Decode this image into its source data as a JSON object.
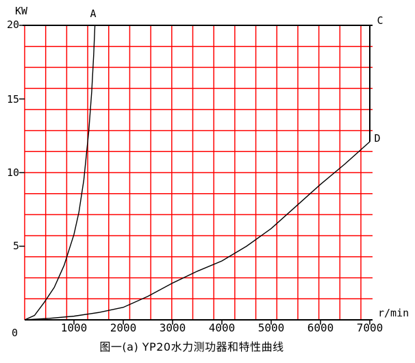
{
  "figure": {
    "unit_y": "KW",
    "unit_x": "r/min",
    "origin_label": "0",
    "y_ticks": [
      "20",
      "15",
      "10",
      "5"
    ],
    "x_ticks": [
      "1000",
      "2000",
      "3000",
      "4000",
      "5000",
      "6000",
      "7000"
    ],
    "point_labels": {
      "A": "A",
      "C": "C",
      "D": "D"
    },
    "caption": "图一(a) YP20水力测功器和特性曲线",
    "colors": {
      "grid": "#ff0000",
      "ink": "#000000",
      "background": "#ffffff"
    }
  },
  "chart_data": {
    "type": "line",
    "title": "图一(a) YP20水力测功器和特性曲线",
    "xlabel": "r/min",
    "ylabel": "KW",
    "xlim": [
      0,
      7000
    ],
    "ylim": [
      0,
      20
    ],
    "x_ticks": [
      1000,
      2000,
      3000,
      4000,
      5000,
      6000,
      7000
    ],
    "y_ticks": [
      5,
      10,
      15,
      20
    ],
    "grid": {
      "visible": true,
      "color": "#ff0000",
      "note": "uniform red square mesh (14 rows), not aligned with the black axis tick marks"
    },
    "legend_position": "none",
    "series": [
      {
        "name": "A",
        "description": "steep rising power curve from origin, reaches 20 KW near 1425 r/min, labeled A at top",
        "points": [
          [
            0,
            0
          ],
          [
            200,
            0.3
          ],
          [
            400,
            1.2
          ],
          [
            600,
            2.2
          ],
          [
            800,
            3.7
          ],
          [
            1000,
            5.8
          ],
          [
            1100,
            7.3
          ],
          [
            1200,
            9.5
          ],
          [
            1300,
            12.8
          ],
          [
            1360,
            15.5
          ],
          [
            1400,
            18.0
          ],
          [
            1425,
            20.0
          ]
        ]
      },
      {
        "name": "C-D",
        "description": "vertical limit line at 7000 r/min from 20 KW (corner C) down to 12.1 KW (point D)",
        "points": [
          [
            7000,
            20
          ],
          [
            7000,
            12.1
          ]
        ]
      },
      {
        "name": "D",
        "description": "lower power curve from origin rising to 12.1 KW at 7000 r/min, labeled D at right edge",
        "points": [
          [
            0,
            0
          ],
          [
            500,
            0.1
          ],
          [
            1000,
            0.25
          ],
          [
            1500,
            0.5
          ],
          [
            2000,
            0.85
          ],
          [
            2500,
            1.6
          ],
          [
            3000,
            2.5
          ],
          [
            3500,
            3.3
          ],
          [
            4000,
            4.0
          ],
          [
            4500,
            5.0
          ],
          [
            5000,
            6.2
          ],
          [
            5500,
            7.7
          ],
          [
            6000,
            9.2
          ],
          [
            6500,
            10.6
          ],
          [
            7000,
            12.1
          ]
        ]
      }
    ]
  }
}
